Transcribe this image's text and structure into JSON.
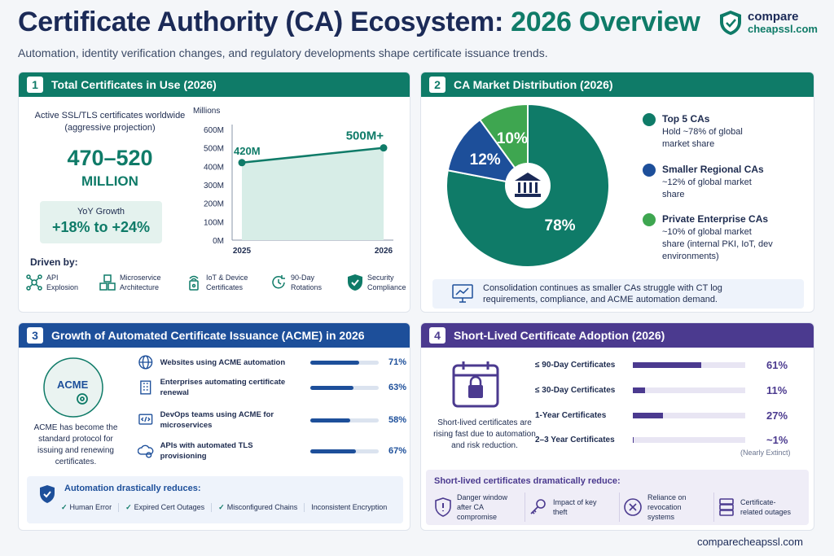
{
  "header": {
    "title_main": "Certificate Authority (CA) Ecosystem: ",
    "title_accent": "2026 Overview",
    "subtitle": "Automation, identity verification changes, and regulatory developments shape certificate issuance trends.",
    "logo_line1": "compare",
    "logo_line2": "cheapssl.com"
  },
  "panel1": {
    "num": "1",
    "title": "Total Certificates in Use (2026)",
    "desc": "Active SSL/TLS certificates worldwide (aggressive projection)",
    "big": "470–520",
    "big_unit": "MILLION",
    "yoy_label": "YoY Growth",
    "yoy_value": "+18% to +24%",
    "driven_by": "Driven by:",
    "drivers": [
      {
        "icon": "network-icon",
        "label": "API Explosion"
      },
      {
        "icon": "cubes-icon",
        "label": "Microservice Architecture"
      },
      {
        "icon": "iot-device-icon",
        "label": "IoT & Device Certificates"
      },
      {
        "icon": "rotation-icon",
        "label": "90-Day Rotations"
      },
      {
        "icon": "shield-check-icon",
        "label": "Security Compliance"
      }
    ]
  },
  "chart_data": [
    {
      "type": "area",
      "ylabel": "Millions",
      "x": [
        "2025",
        "2026"
      ],
      "y": [
        420,
        500
      ],
      "data_labels": [
        "420M",
        "500M+"
      ],
      "yticks": [
        "0M",
        "100M",
        "200M",
        "300M",
        "400M",
        "500M",
        "600M"
      ],
      "ylim": [
        0,
        600
      ],
      "color": "#0f7b68"
    },
    {
      "type": "pie",
      "labels": [
        "Top 5 CAs",
        "Smaller Regional CAs",
        "Private Enterprise CAs"
      ],
      "values": [
        78,
        12,
        10
      ],
      "display": [
        "78%",
        "12%",
        "10%"
      ],
      "colors": [
        "#0f7b68",
        "#1d4f9a",
        "#3ea650"
      ]
    }
  ],
  "panel2": {
    "num": "2",
    "title": "CA Market Distribution (2026)",
    "legend": [
      {
        "title": "Top 5 CAs",
        "desc": "Hold ~78% of global market share",
        "color": "#0f7b68"
      },
      {
        "title": "Smaller Regional CAs",
        "desc": "~12% of global market share",
        "color": "#1d4f9a"
      },
      {
        "title": "Private Enterprise CAs",
        "desc": "~10% of global market share (internal PKI, IoT, dev environments)",
        "color": "#3ea650"
      }
    ],
    "note": "Consolidation continues as smaller CAs struggle with CT log requirements, compliance, and ACME automation demand."
  },
  "panel3": {
    "num": "3",
    "title": "Growth of Automated Certificate Issuance (ACME) in 2026",
    "acme_label": "ACME",
    "acme_desc": "ACME has become the standard protocol for issuing and renewing certificates.",
    "rows": [
      {
        "icon": "globe-icon",
        "label": "Websites using ACME automation",
        "value": 71,
        "display": "71%"
      },
      {
        "icon": "building-icon",
        "label": "Enterprises automating certificate renewal",
        "value": 63,
        "display": "63%"
      },
      {
        "icon": "code-icon",
        "label": "DevOps teams using ACME for microservices",
        "value": 58,
        "display": "58%"
      },
      {
        "icon": "api-icon",
        "label": "APIs with automated TLS provisioning",
        "value": 67,
        "display": "67%"
      }
    ],
    "reduces_title": "Automation drastically reduces:",
    "reduces": [
      "Human Error",
      "Expired Cert Outages",
      "Misconfigured Chains",
      "Inconsistent Encryption"
    ]
  },
  "panel4": {
    "num": "4",
    "title": "Short-Lived Certificate Adoption (2026)",
    "desc": "Short-lived certificates are rising fast due to automation and risk reduction.",
    "rows": [
      {
        "label": "≤ 90-Day Certificates",
        "value": 61,
        "display": "61%"
      },
      {
        "label": "≤ 30-Day Certificates",
        "value": 11,
        "display": "11%"
      },
      {
        "label": "1-Year Certificates",
        "value": 27,
        "display": "27%"
      },
      {
        "label": "2–3 Year Certificates",
        "value": 1,
        "display": "~1%"
      }
    ],
    "extinct": "(Nearly Extinct)",
    "reduces_title": "Short-lived certificates dramatically reduce:",
    "reduces": [
      {
        "icon": "shield-danger-icon",
        "label": "Danger window after CA compromise"
      },
      {
        "icon": "key-icon",
        "label": "Impact of key theft"
      },
      {
        "icon": "x-circle-icon",
        "label": "Reliance on revocation systems"
      },
      {
        "icon": "server-icon",
        "label": "Certificate-related outages"
      }
    ]
  },
  "footer": "comparecheapssl.com"
}
